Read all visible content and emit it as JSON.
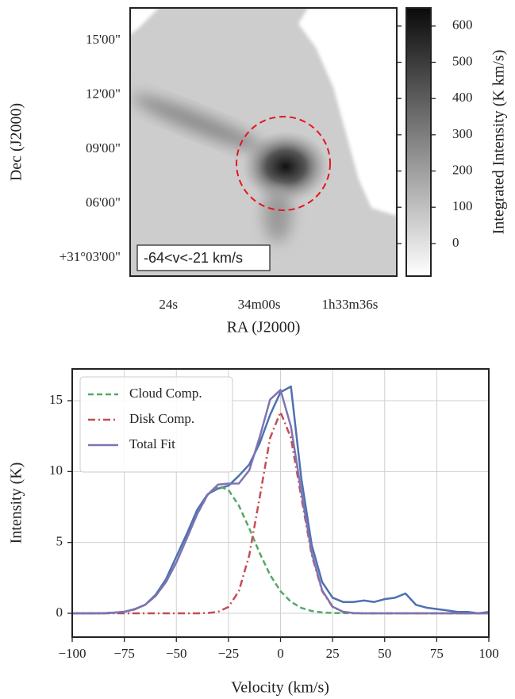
{
  "chart_data": [
    {
      "type": "image",
      "xlabel": "RA (J2000)",
      "ylabel": "Dec (J2000)",
      "xlim": [
        94.1,
        23.6
      ],
      "xticks": [
        {
          "value": 84,
          "label": "24s"
        },
        {
          "value": 60,
          "label": "34m00s"
        },
        {
          "value": 36,
          "label": "1h33m36s"
        }
      ],
      "ylim": [
        2.0,
        16.8
      ],
      "yticks": [
        {
          "value": 15,
          "label": "15'00\""
        },
        {
          "value": 12,
          "label": "12'00\""
        },
        {
          "value": 9,
          "label": "09'00\""
        },
        {
          "value": 6,
          "label": "06'00\""
        },
        {
          "value": 3,
          "label": "+31°03'00\""
        }
      ],
      "annotation": "-64<v<-21 km/s",
      "colorbar": {
        "label": "Integrated Intensity (K km/s)",
        "clim": [
          -90,
          650
        ],
        "ticks": [
          0,
          100,
          200,
          300,
          400,
          500,
          600
        ],
        "cmap": [
          "#ffffff",
          "#0a0a0a"
        ]
      }
    },
    {
      "type": "line",
      "xlabel": "Velocity (km/s)",
      "ylabel": "Intensity (K)",
      "xlim": [
        -100,
        100
      ],
      "xticks": [
        {
          "value": -100,
          "label": "−100"
        },
        {
          "value": -75,
          "label": "−75"
        },
        {
          "value": -50,
          "label": "−50"
        },
        {
          "value": -25,
          "label": "−25"
        },
        0,
        25,
        50,
        75,
        100
      ],
      "ylim": [
        -1.68,
        17.24
      ],
      "yticks": [
        0,
        5,
        10,
        15
      ],
      "grid": true,
      "legend": "upper left",
      "x": [
        -100,
        -95,
        -90,
        -85,
        -80,
        -75,
        -70,
        -65,
        -60,
        -55,
        -50,
        -45,
        -40,
        -35,
        -30,
        -25,
        -20,
        -15,
        -10,
        -5,
        0,
        5,
        10,
        15,
        20,
        25,
        30,
        35,
        40,
        45,
        50,
        55,
        60,
        65,
        70,
        75,
        80,
        85,
        90,
        95,
        100
      ],
      "series": [
        {
          "color": "#4c72b0",
          "dash": "solid",
          "values": [
            0,
            0,
            0,
            0,
            0.05,
            0.1,
            0.3,
            0.6,
            1.3,
            2.4,
            4.0,
            5.6,
            7.3,
            8.4,
            8.8,
            9.0,
            9.7,
            10.5,
            12.0,
            14.0,
            15.6,
            16.0,
            9.5,
            4.8,
            2.2,
            1.1,
            0.8,
            0.8,
            0.9,
            0.8,
            1.0,
            1.1,
            1.4,
            0.6,
            0.4,
            0.3,
            0.2,
            0.1,
            0.1,
            0.0,
            0.1
          ]
        },
        {
          "name": "Cloud Comp.",
          "color": "#55a868",
          "dash": "dashed",
          "values": [
            0,
            0.001,
            0.004,
            0.013,
            0.04,
            0.11,
            0.27,
            0.6,
            1.22,
            2.2,
            3.59,
            5.28,
            7.0,
            8.35,
            8.98,
            8.7,
            7.6,
            5.99,
            4.25,
            2.71,
            1.56,
            0.81,
            0.38,
            0.16,
            0.06,
            0.02,
            0.01,
            0,
            0,
            0,
            0,
            0,
            0,
            0,
            0,
            0,
            0,
            0,
            0,
            0,
            0
          ]
        },
        {
          "name": "Disk Comp.",
          "color": "#c44e52",
          "dash": "dashdot",
          "values": [
            0,
            0,
            0,
            0,
            0,
            0,
            0,
            0,
            0,
            0,
            0,
            0,
            0,
            0.02,
            0.1,
            0.45,
            1.56,
            4.1,
            8.18,
            12.37,
            14.2,
            12.37,
            8.18,
            4.1,
            1.56,
            0.45,
            0.1,
            0.02,
            0,
            0,
            0,
            0,
            0,
            0,
            0,
            0,
            0,
            0,
            0,
            0,
            0
          ]
        },
        {
          "name": "Total Fit",
          "color": "#8172b2",
          "dash": "solid",
          "values": [
            0,
            0,
            0,
            0.01,
            0.04,
            0.11,
            0.27,
            0.6,
            1.22,
            2.2,
            3.59,
            5.28,
            7.0,
            8.37,
            9.08,
            9.15,
            9.16,
            10.09,
            12.43,
            15.08,
            15.76,
            13.18,
            8.56,
            4.26,
            1.62,
            0.47,
            0.11,
            0.02,
            0,
            0,
            0,
            0,
            0,
            0,
            0,
            0,
            0,
            0,
            0,
            0,
            0
          ]
        }
      ]
    }
  ]
}
